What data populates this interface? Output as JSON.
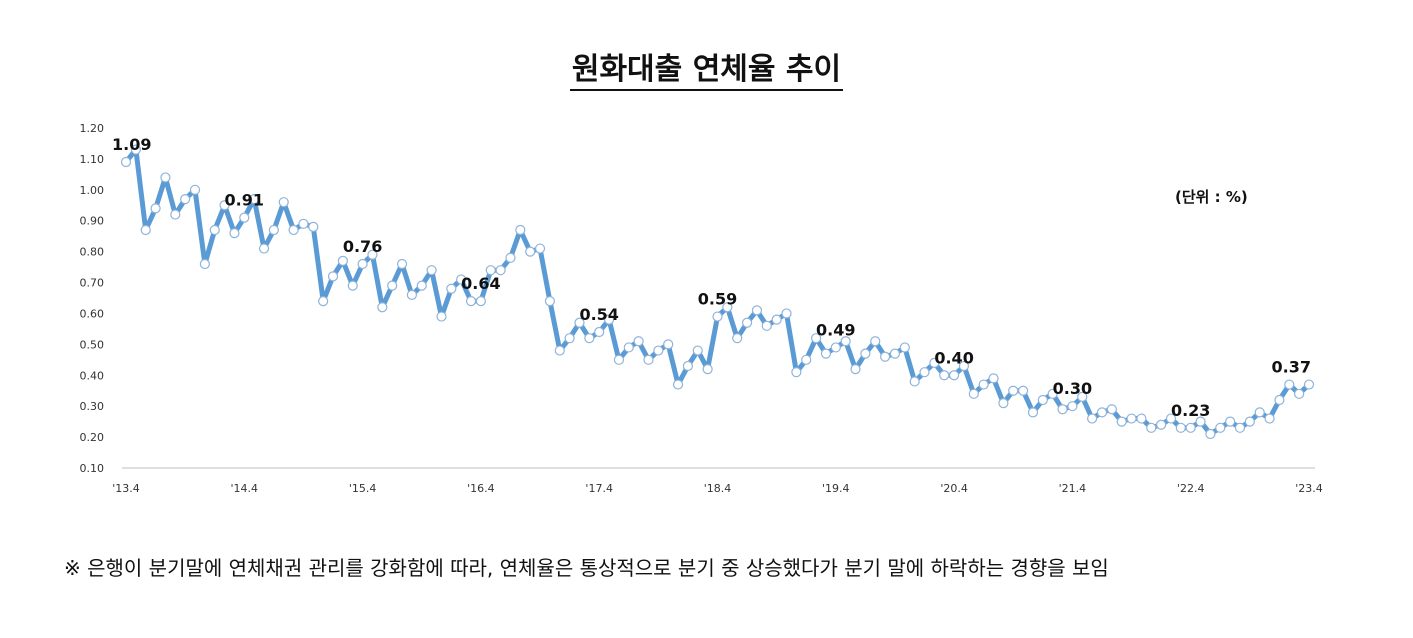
{
  "title": "원화대출 연체율 추이",
  "unit_label": "(단위 : %)",
  "footnote": "※ 은행이 분기말에 연체채권 관리를 강화함에 따라, 연체율은 통상적으로 분기 중 상승했다가 분기 말에 하락하는 경향을 보임",
  "colors": {
    "line": "#5b9bd5",
    "marker_fill": "#ffffff",
    "marker_stroke": "#8fb3d9",
    "axis": "#bfbfbf"
  },
  "chart_data": {
    "type": "line",
    "title": "원화대출 연체율 추이",
    "xlabel": "",
    "ylabel": "",
    "ylim": [
      0.1,
      1.2
    ],
    "yticks": [
      "0.10",
      "0.20",
      "0.30",
      "0.40",
      "0.50",
      "0.60",
      "0.70",
      "0.80",
      "0.90",
      "1.00",
      "1.10",
      "1.20"
    ],
    "xticks": [
      {
        "index": 0,
        "label": "'13.4"
      },
      {
        "index": 12,
        "label": "'14.4"
      },
      {
        "index": 24,
        "label": "'15.4"
      },
      {
        "index": 36,
        "label": "'16.4"
      },
      {
        "index": 48,
        "label": "'17.4"
      },
      {
        "index": 60,
        "label": "'18.4"
      },
      {
        "index": 72,
        "label": "'19.4"
      },
      {
        "index": 84,
        "label": "'20.4"
      },
      {
        "index": 96,
        "label": "'21.4"
      },
      {
        "index": 108,
        "label": "'22.4"
      },
      {
        "index": 120,
        "label": "'23.4"
      }
    ],
    "series": [
      {
        "name": "원화대출 연체율",
        "values": [
          1.09,
          1.13,
          0.87,
          0.94,
          1.04,
          0.92,
          0.97,
          1.0,
          0.76,
          0.87,
          0.95,
          0.86,
          0.91,
          0.97,
          0.81,
          0.87,
          0.96,
          0.87,
          0.89,
          0.88,
          0.64,
          0.72,
          0.77,
          0.69,
          0.76,
          0.79,
          0.62,
          0.69,
          0.76,
          0.66,
          0.69,
          0.74,
          0.59,
          0.68,
          0.71,
          0.64,
          0.64,
          0.74,
          0.74,
          0.78,
          0.87,
          0.8,
          0.81,
          0.64,
          0.48,
          0.52,
          0.57,
          0.52,
          0.54,
          0.58,
          0.45,
          0.49,
          0.51,
          0.45,
          0.48,
          0.5,
          0.37,
          0.43,
          0.48,
          0.42,
          0.59,
          0.62,
          0.52,
          0.57,
          0.61,
          0.56,
          0.58,
          0.6,
          0.41,
          0.45,
          0.52,
          0.47,
          0.49,
          0.51,
          0.42,
          0.47,
          0.51,
          0.46,
          0.47,
          0.49,
          0.38,
          0.41,
          0.44,
          0.4,
          0.4,
          0.43,
          0.34,
          0.37,
          0.39,
          0.31,
          0.35,
          0.35,
          0.28,
          0.32,
          0.34,
          0.29,
          0.3,
          0.33,
          0.26,
          0.28,
          0.29,
          0.25,
          0.26,
          0.26,
          0.23,
          0.24,
          0.26,
          0.23,
          0.23,
          0.25,
          0.21,
          0.23,
          0.25,
          0.23,
          0.25,
          0.28,
          0.26,
          0.32,
          0.37,
          0.34,
          0.37
        ]
      }
    ],
    "data_labels": [
      {
        "index": 0,
        "text": "1.09"
      },
      {
        "index": 12,
        "text": "0.91"
      },
      {
        "index": 24,
        "text": "0.76"
      },
      {
        "index": 36,
        "text": "0.64"
      },
      {
        "index": 48,
        "text": "0.54"
      },
      {
        "index": 60,
        "text": "0.59"
      },
      {
        "index": 72,
        "text": "0.49"
      },
      {
        "index": 84,
        "text": "0.40"
      },
      {
        "index": 96,
        "text": "0.30"
      },
      {
        "index": 108,
        "text": "0.23"
      },
      {
        "index": 120,
        "text": "0.37"
      }
    ]
  }
}
